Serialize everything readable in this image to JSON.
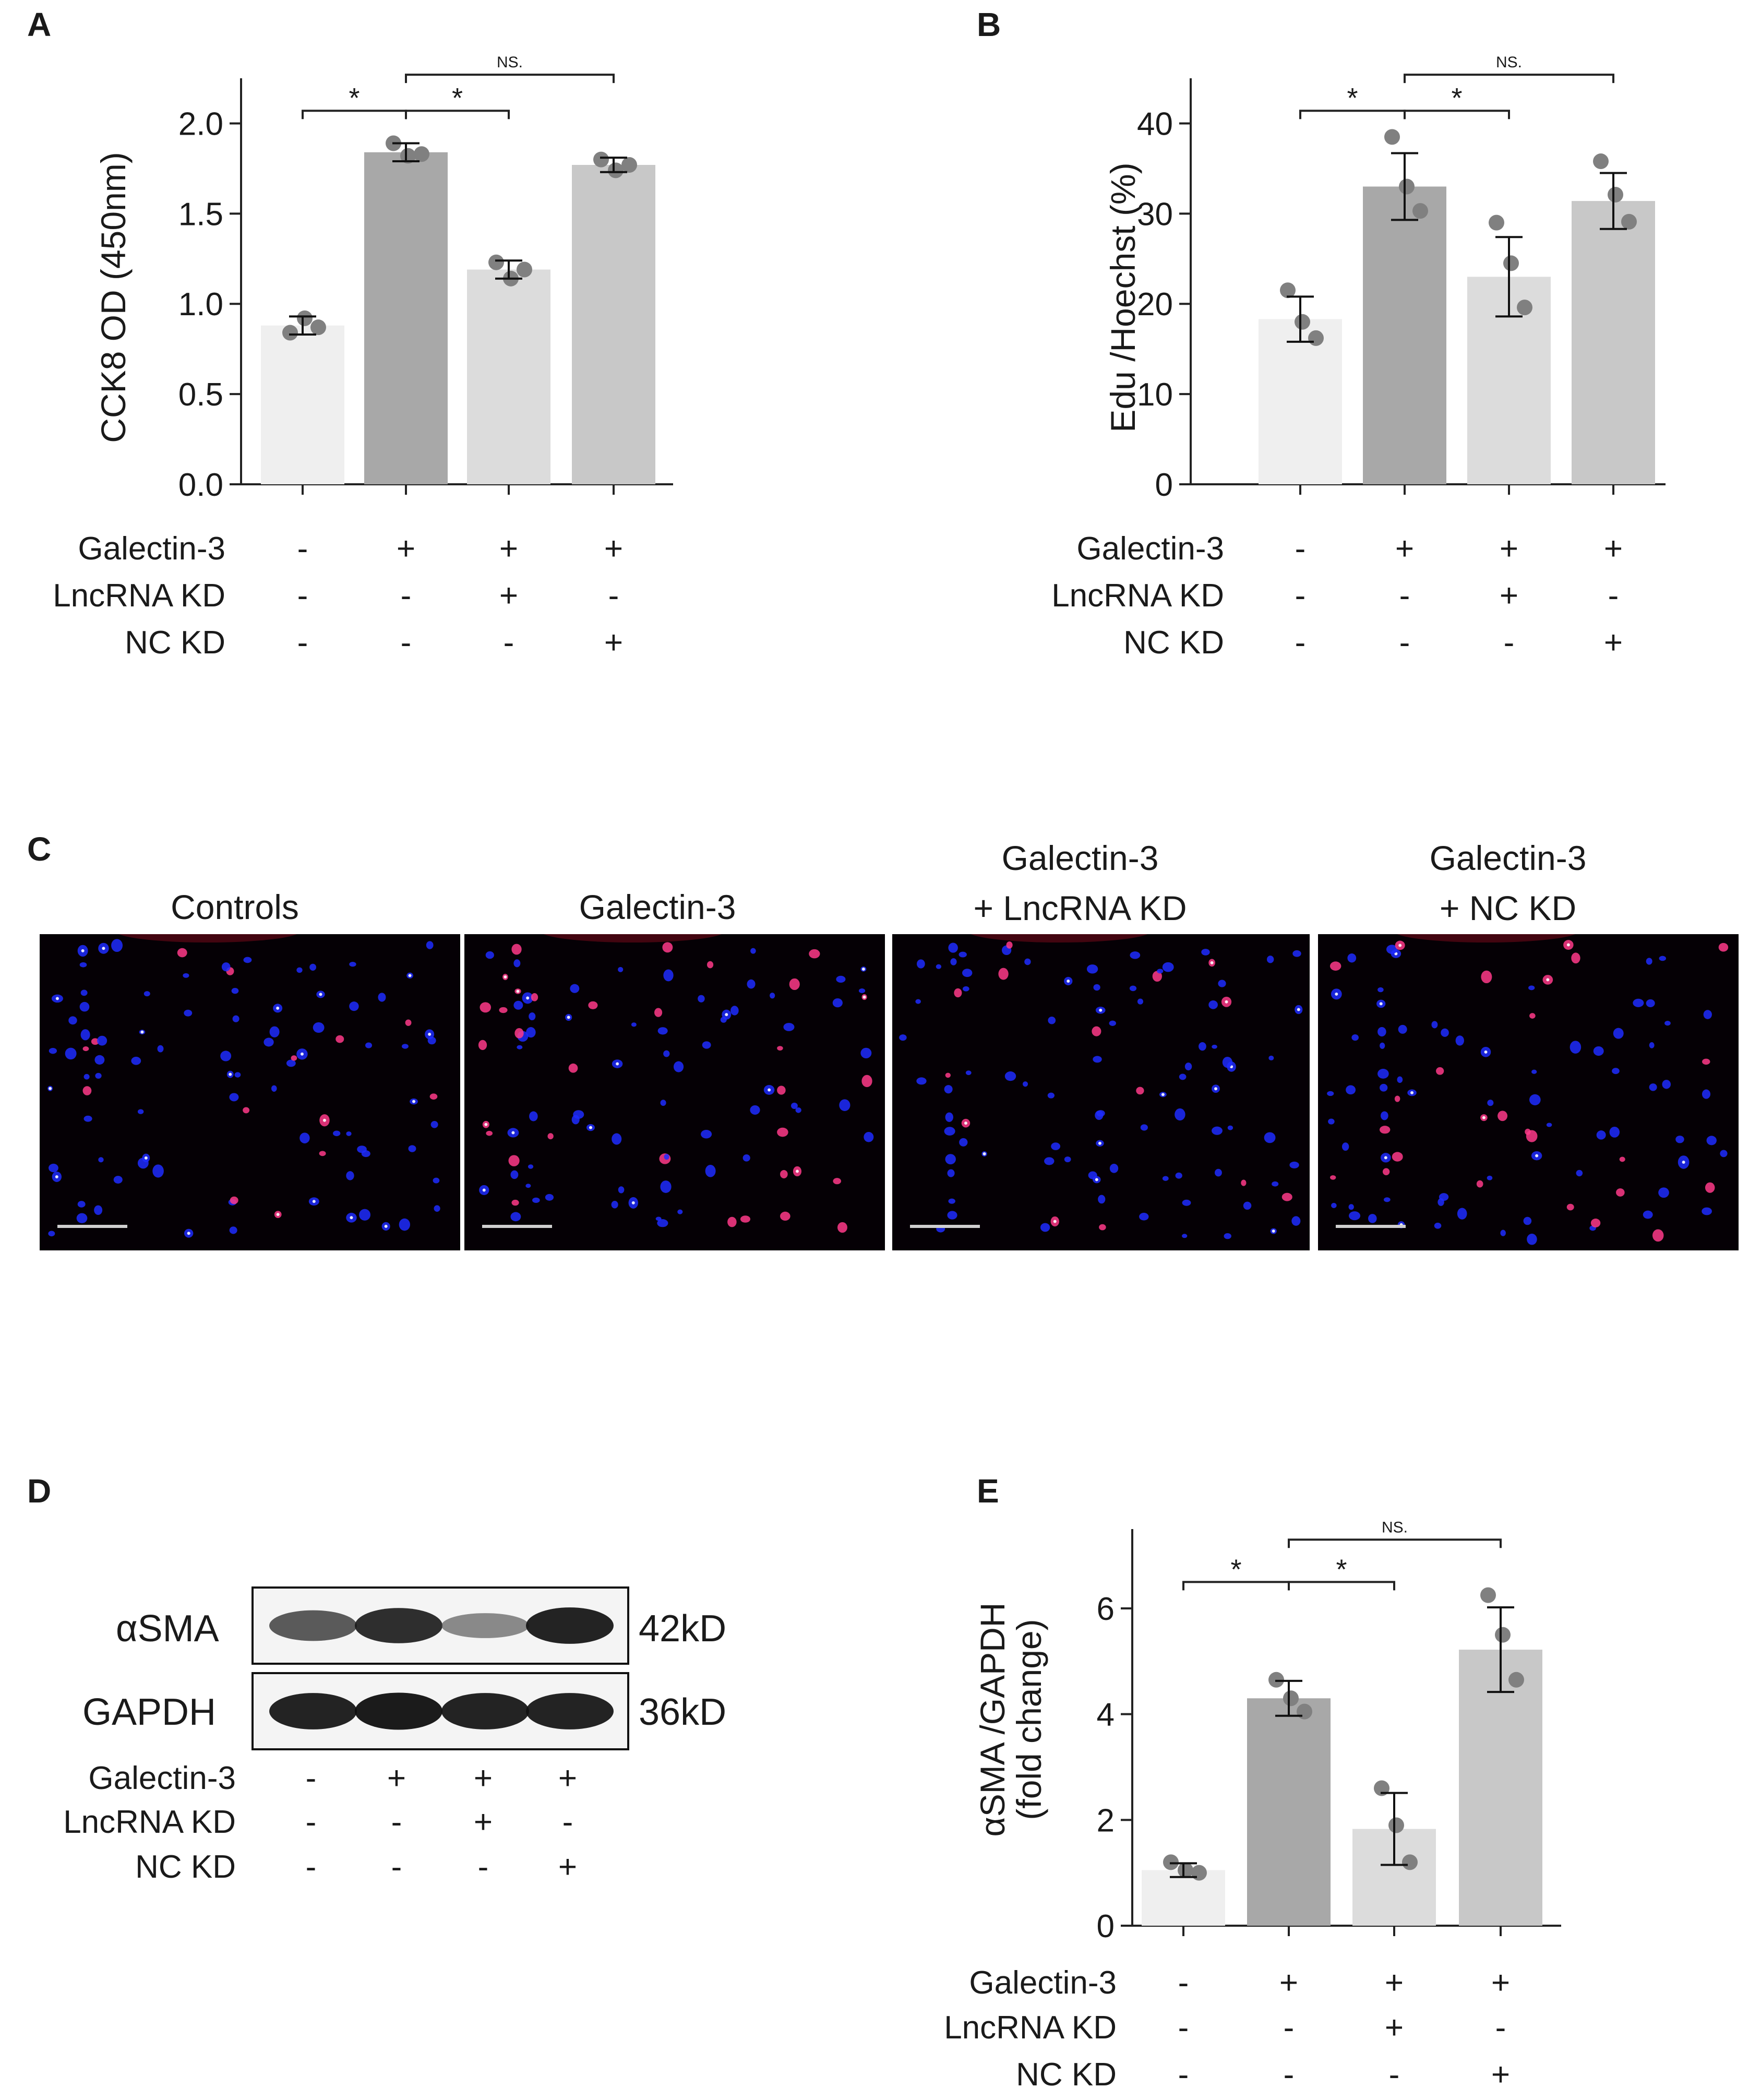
{
  "panels": {
    "A": "A",
    "B": "B",
    "C": "C",
    "D": "D",
    "E": "E"
  },
  "conditions": {
    "rows": [
      "Galectin-3",
      "LncRNA KD",
      "NC KD"
    ],
    "signs": [
      [
        "-",
        "+",
        "+",
        "+"
      ],
      [
        "-",
        "-",
        "+",
        "-"
      ],
      [
        "-",
        "-",
        "-",
        "+"
      ]
    ]
  },
  "colors": {
    "bars": [
      "#efefef",
      "#a8a8a8",
      "#dcdcdc",
      "#c8c8c8"
    ],
    "points": "#808080",
    "nuclei": "#1f2cff",
    "edu": "#ff3a8a"
  },
  "chart_data": [
    {
      "panel": "A",
      "type": "bar",
      "ylabel": "CCK8 OD (450nm)",
      "ylim": [
        0,
        2.25
      ],
      "yticks": [
        0.0,
        0.5,
        1.0,
        1.5,
        2.0
      ],
      "ytick_labels": [
        "0.0",
        "0.5",
        "1.0",
        "1.5",
        "2.0"
      ],
      "values": [
        0.88,
        1.84,
        1.19,
        1.77
      ],
      "errors": [
        0.05,
        0.05,
        0.05,
        0.04
      ],
      "points": [
        [
          0.84,
          0.92,
          0.87
        ],
        [
          1.89,
          1.82,
          1.83
        ],
        [
          1.23,
          1.14,
          1.19
        ],
        [
          1.8,
          1.74,
          1.77
        ]
      ],
      "significance": [
        {
          "from": 0,
          "to": 1,
          "label": "*",
          "level": 2.07
        },
        {
          "from": 1,
          "to": 2,
          "label": "*",
          "level": 2.07
        },
        {
          "from": 1,
          "to": 3,
          "label": "NS.",
          "level": 2.27
        }
      ]
    },
    {
      "panel": "B",
      "type": "bar",
      "ylabel": "Edu /Hoechst (%)",
      "ylim": [
        0,
        45
      ],
      "yticks": [
        0,
        10,
        20,
        30,
        40
      ],
      "ytick_labels": [
        "0",
        "10",
        "20",
        "30",
        "40"
      ],
      "values": [
        18.3,
        33,
        23,
        31.4
      ],
      "errors": [
        2.5,
        3.7,
        4.4,
        3.1
      ],
      "points": [
        [
          21.5,
          18,
          16.2
        ],
        [
          38.5,
          33,
          30.3
        ],
        [
          29,
          24.5,
          19.6
        ],
        [
          35.8,
          32.1,
          29.1
        ]
      ],
      "significance": [
        {
          "from": 0,
          "to": 1,
          "label": "*",
          "level": 41.4
        },
        {
          "from": 1,
          "to": 2,
          "label": "*",
          "level": 41.4
        },
        {
          "from": 1,
          "to": 3,
          "label": "NS.",
          "level": 45.4
        }
      ]
    },
    {
      "panel": "E",
      "type": "bar",
      "ylabel": "αSMA /GAPDH (fold change)",
      "ylabel_lines": [
        "αSMA /GAPDH",
        "(fold change)"
      ],
      "ylim": [
        0,
        7.5
      ],
      "yticks": [
        0,
        2,
        4,
        6
      ],
      "ytick_labels": [
        "0",
        "2",
        "4",
        "6"
      ],
      "values": [
        1.05,
        4.3,
        1.83,
        5.22
      ],
      "errors": [
        0.13,
        0.33,
        0.68,
        0.8
      ],
      "points": [
        [
          1.2,
          1.05,
          1.0
        ],
        [
          4.65,
          4.3,
          4.05
        ],
        [
          2.6,
          1.9,
          1.2
        ],
        [
          6.25,
          5.5,
          4.65
        ]
      ],
      "significance": [
        {
          "from": 0,
          "to": 1,
          "label": "*",
          "level": 6.5
        },
        {
          "from": 1,
          "to": 2,
          "label": "*",
          "level": 6.5
        },
        {
          "from": 1,
          "to": 3,
          "label": "NS.",
          "level": 7.3
        }
      ]
    }
  ],
  "micrographs": {
    "titles": [
      [
        "Controls"
      ],
      [
        "Galectin-3"
      ],
      [
        "Galectin-3",
        "+ LncRNA KD"
      ],
      [
        "Galectin-3",
        "+ NC KD"
      ]
    ]
  },
  "western": {
    "bands": [
      {
        "protein": "αSMA",
        "size": "42kD",
        "intensity": [
          0.7,
          0.9,
          0.45,
          0.95
        ]
      },
      {
        "protein": "GAPDH",
        "size": "36kD",
        "intensity": [
          0.95,
          0.98,
          0.95,
          0.95
        ]
      }
    ]
  }
}
